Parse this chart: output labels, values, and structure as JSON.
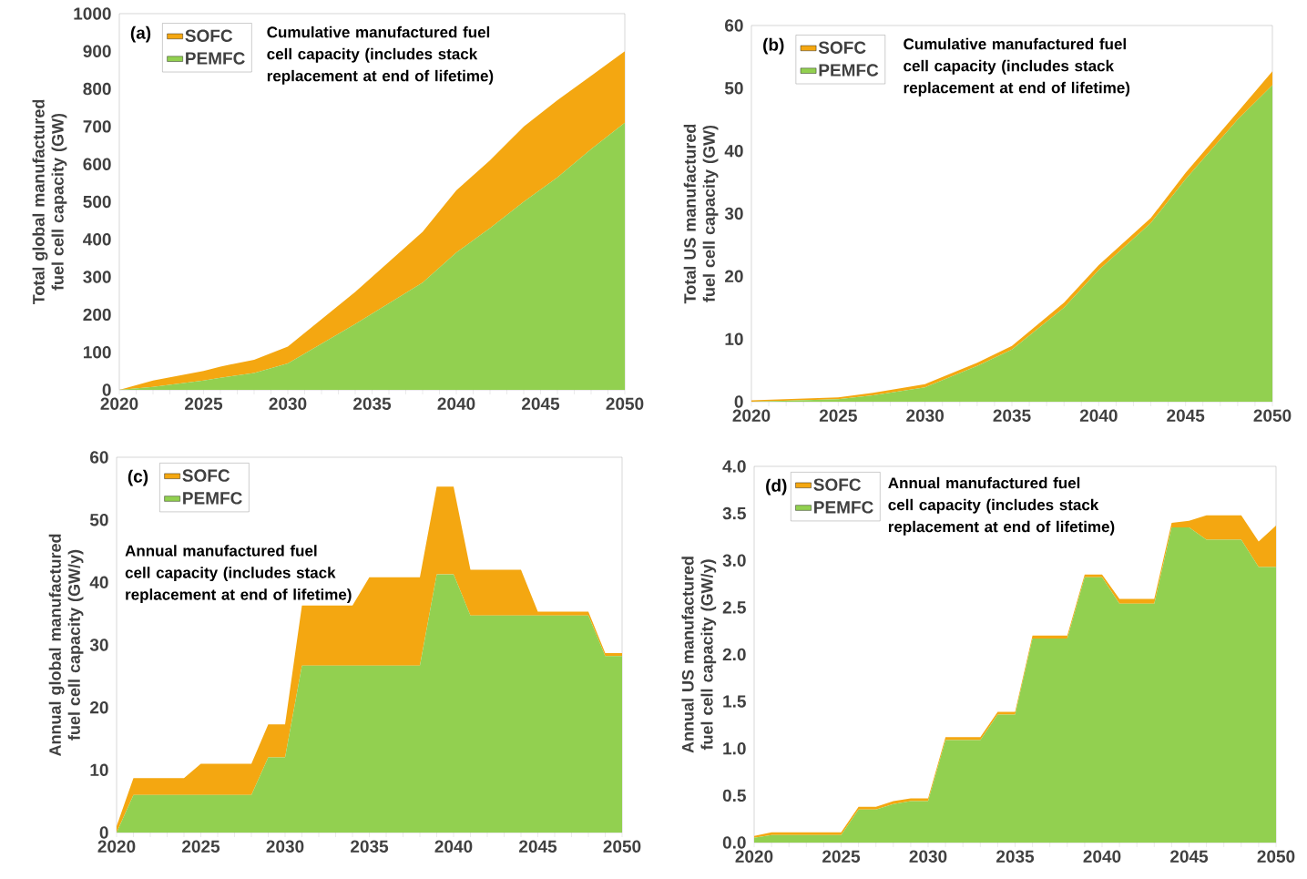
{
  "chart_data": [
    {
      "type": "area",
      "title": "(a)",
      "ylabel": "Total global manufactured fuel cell capacity (GW)",
      "stacked": true,
      "legend": "top left",
      "annotations": [
        "Cumulative manufactured fuel cell capacity (includes stack replacement at end of lifetime)"
      ],
      "x": [
        2020,
        2022,
        2025,
        2026,
        2028,
        2030,
        2034,
        2038,
        2040,
        2042,
        2044,
        2046,
        2048,
        2050
      ],
      "series": [
        {
          "name": "PEMFC",
          "color": "#92d050",
          "values": [
            0,
            8,
            25,
            32,
            45,
            70,
            175,
            285,
            365,
            430,
            500,
            565,
            640,
            710
          ]
        },
        {
          "name": "SOFC",
          "color": "#f4a711",
          "values": [
            0,
            17,
            25,
            30,
            35,
            45,
            85,
            135,
            165,
            180,
            200,
            205,
            195,
            190
          ]
        }
      ],
      "xlim": [
        2020,
        2050
      ],
      "xticks": [
        2020,
        2025,
        2030,
        2035,
        2040,
        2045,
        2050
      ],
      "ylim": [
        0,
        1000
      ],
      "yticks": [
        0,
        100,
        200,
        300,
        400,
        500,
        600,
        700,
        800,
        900,
        1000
      ]
    },
    {
      "type": "area",
      "title": "(b)",
      "ylabel": "Total US manufactured fuel cell capacity (GW)",
      "stacked": true,
      "legend": "top left",
      "annotations": [
        "Cumulative manufactured fuel cell capacity (includes stack replacement at end of lifetime)"
      ],
      "x": [
        2020,
        2025,
        2027,
        2030,
        2033,
        2035,
        2038,
        2040,
        2043,
        2045,
        2048,
        2050
      ],
      "series": [
        {
          "name": "PEMFC",
          "color": "#92d050",
          "values": [
            0,
            0.4,
            1.0,
            2.3,
            5.7,
            8.3,
            15,
            21,
            28.5,
            35.5,
            45,
            50.5
          ]
        },
        {
          "name": "SOFC",
          "color": "#f4a711",
          "values": [
            0.2,
            0.3,
            0.4,
            0.5,
            0.5,
            0.6,
            0.8,
            0.8,
            0.8,
            1.0,
            1.2,
            2.2
          ]
        }
      ],
      "xlim": [
        2020,
        2050
      ],
      "xticks": [
        2020,
        2025,
        2030,
        2035,
        2040,
        2045,
        2050
      ],
      "ylim": [
        0,
        60
      ],
      "yticks": [
        0,
        10,
        20,
        30,
        40,
        50,
        60
      ]
    },
    {
      "type": "area",
      "title": "(c)",
      "ylabel": "Annual global manufactured fuel cell capacity (GW/y)",
      "stacked": true,
      "legend": "top left",
      "annotations": [
        "Annual manufactured fuel cell capacity (includes stack replacement at end of lifetime)"
      ],
      "x": [
        2020,
        2021,
        2022,
        2023,
        2024,
        2025,
        2026,
        2027,
        2028,
        2029,
        2030,
        2031,
        2032,
        2033,
        2034,
        2035,
        2036,
        2037,
        2038,
        2039,
        2040,
        2041,
        2042,
        2043,
        2044,
        2045,
        2046,
        2047,
        2048,
        2049,
        2050
      ],
      "series": [
        {
          "name": "PEMFC",
          "color": "#92d050",
          "values": [
            0,
            6,
            6,
            6,
            6,
            6,
            6,
            6,
            6,
            12,
            12,
            26.7,
            26.7,
            26.7,
            26.7,
            26.7,
            26.7,
            26.7,
            26.7,
            41.3,
            41.3,
            34.7,
            34.7,
            34.7,
            34.7,
            34.7,
            34.7,
            34.7,
            34.7,
            28.2,
            28.2
          ]
        },
        {
          "name": "SOFC",
          "color": "#f4a711",
          "values": [
            1,
            2.7,
            2.7,
            2.7,
            2.7,
            5,
            5,
            5,
            5,
            5.3,
            5.3,
            9.6,
            9.6,
            9.6,
            9.6,
            14.1,
            14.1,
            14.1,
            14.1,
            14,
            14,
            7.3,
            7.3,
            7.3,
            7.3,
            0.6,
            0.6,
            0.6,
            0.6,
            0.5,
            0.5
          ]
        }
      ],
      "xlim": [
        2020,
        2050
      ],
      "xticks": [
        2020,
        2025,
        2030,
        2035,
        2040,
        2045,
        2050
      ],
      "ylim": [
        0,
        60
      ],
      "yticks": [
        0,
        10,
        20,
        30,
        40,
        50,
        60
      ]
    },
    {
      "type": "area",
      "title": "(d)",
      "ylabel": "Annual US manufactured fuel cell capacity (GW/y)",
      "stacked": true,
      "legend": "top left",
      "annotations": [
        "Annual manufactured fuel cell capacity (includes stack replacement at end of lifetime)"
      ],
      "x": [
        2020,
        2021,
        2022,
        2023,
        2024,
        2025,
        2026,
        2027,
        2028,
        2029,
        2030,
        2031,
        2032,
        2033,
        2034,
        2035,
        2036,
        2037,
        2038,
        2039,
        2040,
        2041,
        2042,
        2043,
        2044,
        2045,
        2046,
        2047,
        2048,
        2049,
        2050
      ],
      "series": [
        {
          "name": "PEMFC",
          "color": "#92d050",
          "values": [
            0.05,
            0.08,
            0.08,
            0.08,
            0.08,
            0.08,
            0.35,
            0.35,
            0.41,
            0.44,
            0.44,
            1.09,
            1.09,
            1.09,
            1.36,
            1.36,
            2.17,
            2.17,
            2.17,
            2.82,
            2.82,
            2.54,
            2.54,
            2.54,
            3.35,
            3.35,
            3.22,
            3.22,
            3.22,
            2.93,
            2.93
          ]
        },
        {
          "name": "SOFC",
          "color": "#f4a711",
          "values": [
            0.02,
            0.03,
            0.03,
            0.03,
            0.03,
            0.03,
            0.03,
            0.03,
            0.03,
            0.03,
            0.03,
            0.03,
            0.03,
            0.03,
            0.03,
            0.03,
            0.03,
            0.03,
            0.03,
            0.03,
            0.03,
            0.05,
            0.05,
            0.05,
            0.05,
            0.07,
            0.26,
            0.26,
            0.26,
            0.27,
            0.44
          ]
        }
      ],
      "xlim": [
        2020,
        2050
      ],
      "xticks": [
        2020,
        2025,
        2030,
        2035,
        2040,
        2045,
        2050
      ],
      "ylim": [
        0,
        4
      ],
      "yticks": [
        {
          "value": 0,
          "label": "0.0"
        },
        {
          "value": 0.5,
          "label": "0.5"
        },
        {
          "value": 1,
          "label": "1.0"
        },
        {
          "value": 1.5,
          "label": "1.5"
        },
        {
          "value": 2,
          "label": "2.0"
        },
        {
          "value": 2.5,
          "label": "2.5"
        },
        {
          "value": 3,
          "label": "3.0"
        },
        {
          "value": 3.5,
          "label": "3.5"
        },
        {
          "value": 4,
          "label": "4.0"
        }
      ]
    }
  ]
}
